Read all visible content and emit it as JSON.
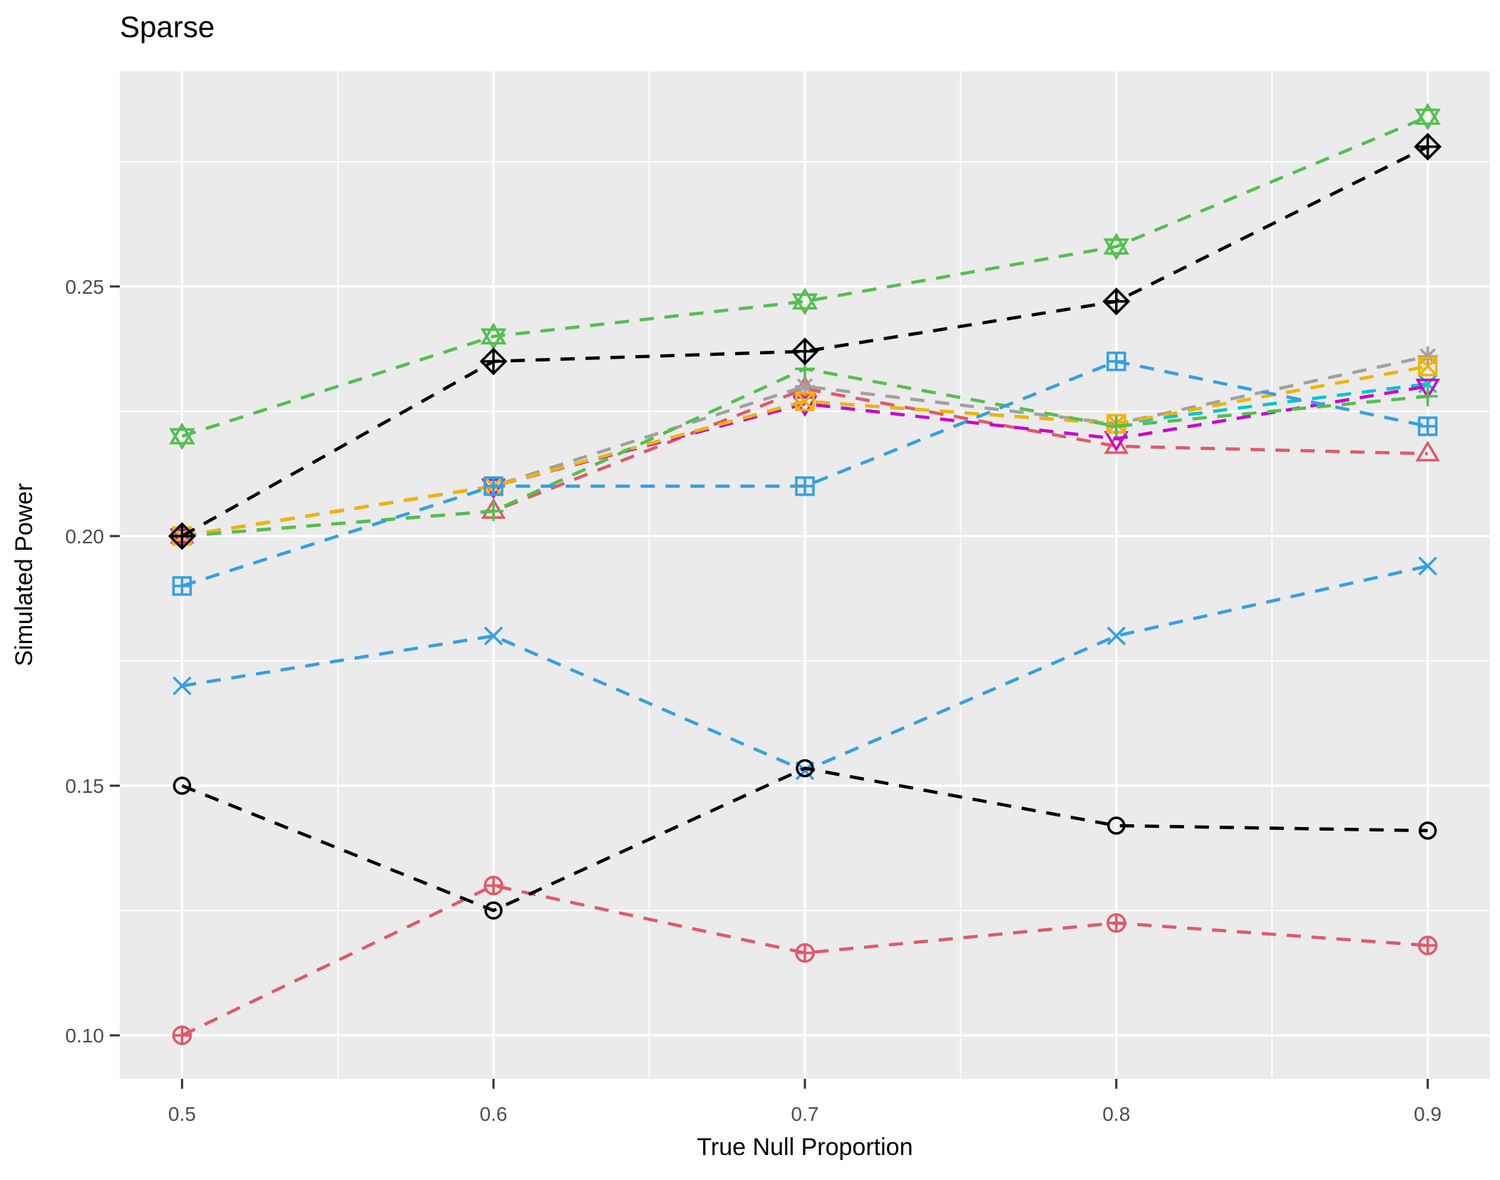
{
  "chart_data": {
    "type": "line",
    "title": "Sparse",
    "xlabel": "True Null Proportion",
    "ylabel": "Simulated Power",
    "legend": "none",
    "grid": "white major+minor gridlines on gray panel",
    "panel_background": "#EBEBEB",
    "gridline_color": "#FFFFFF",
    "tick_color": "#333333",
    "tick_label_color": "#4D4D4D",
    "line_style": "dashed",
    "x": [
      0.5,
      0.6,
      0.7,
      0.8,
      0.9
    ],
    "xlim": [
      0.48,
      0.92
    ],
    "ylim": [
      0.0913,
      0.2931
    ],
    "x_ticks": [
      "0.5",
      "0.6",
      "0.7",
      "0.8",
      "0.9"
    ],
    "x_tick_values": [
      0.5,
      0.6,
      0.7,
      0.8,
      0.9
    ],
    "y_ticks": [
      "0.10",
      "0.15",
      "0.20",
      "0.25"
    ],
    "y_tick_values": [
      0.1,
      0.15,
      0.2,
      0.25
    ],
    "x_minor": [
      0.55,
      0.65,
      0.75,
      0.85
    ],
    "y_minor": [
      0.125,
      0.175,
      0.225,
      0.275
    ],
    "series": [
      {
        "name": "crimson-triangle-up",
        "color": "#DE5A6A",
        "marker": "triangle-up",
        "size": 15,
        "values": [
          0.2,
          0.205,
          0.2295,
          0.218,
          0.2165
        ]
      },
      {
        "name": "cyan-x",
        "color": "#00C5CD",
        "marker": "x",
        "size": 12,
        "values": [
          0.2,
          0.21,
          0.227,
          0.2225,
          0.2305
        ]
      },
      {
        "name": "magenta-triangle-down",
        "color": "#CC00CC",
        "marker": "triangle-down",
        "size": 15,
        "values": [
          0.2,
          0.21,
          0.2265,
          0.2195,
          0.23
        ]
      },
      {
        "name": "gray-asterisk",
        "color": "#A0A0A0",
        "marker": "asterisk",
        "size": 14,
        "values": [
          0.2,
          0.21,
          0.23,
          0.2225,
          0.236
        ]
      },
      {
        "name": "gold-square-x",
        "color": "#F0B400",
        "marker": "square-x",
        "size": 12,
        "values": [
          0.2,
          0.21,
          0.227,
          0.2225,
          0.234
        ]
      },
      {
        "name": "green-plus",
        "color": "#54BE50",
        "marker": "plus",
        "size": 14,
        "values": [
          0.2,
          0.205,
          0.2335,
          0.222,
          0.228
        ]
      },
      {
        "name": "blue-square-plus",
        "color": "#359FE2",
        "marker": "square-plus",
        "size": 12,
        "values": [
          0.19,
          0.21,
          0.21,
          0.235,
          0.222
        ]
      },
      {
        "name": "crimson-circle-plus",
        "color": "#DE5A6A",
        "marker": "circle-plus",
        "size": 12,
        "values": [
          0.1,
          0.13,
          0.1165,
          0.1225,
          0.118
        ]
      },
      {
        "name": "blue-x",
        "color": "#359FE2",
        "marker": "x",
        "size": 12,
        "values": [
          0.17,
          0.18,
          0.153,
          0.18,
          0.194
        ]
      },
      {
        "name": "black-circle",
        "color": "#000000",
        "marker": "circle",
        "size": 11,
        "values": [
          0.15,
          0.125,
          0.1535,
          0.142,
          0.141
        ]
      },
      {
        "name": "green-hexagram",
        "color": "#54BE50",
        "marker": "hexagram",
        "size": 16,
        "values": [
          0.22,
          0.24,
          0.247,
          0.258,
          0.284
        ]
      },
      {
        "name": "black-diamond-plus",
        "color": "#000000",
        "marker": "diamond-plus",
        "size": 17,
        "values": [
          0.2,
          0.235,
          0.237,
          0.247,
          0.278
        ]
      }
    ]
  }
}
